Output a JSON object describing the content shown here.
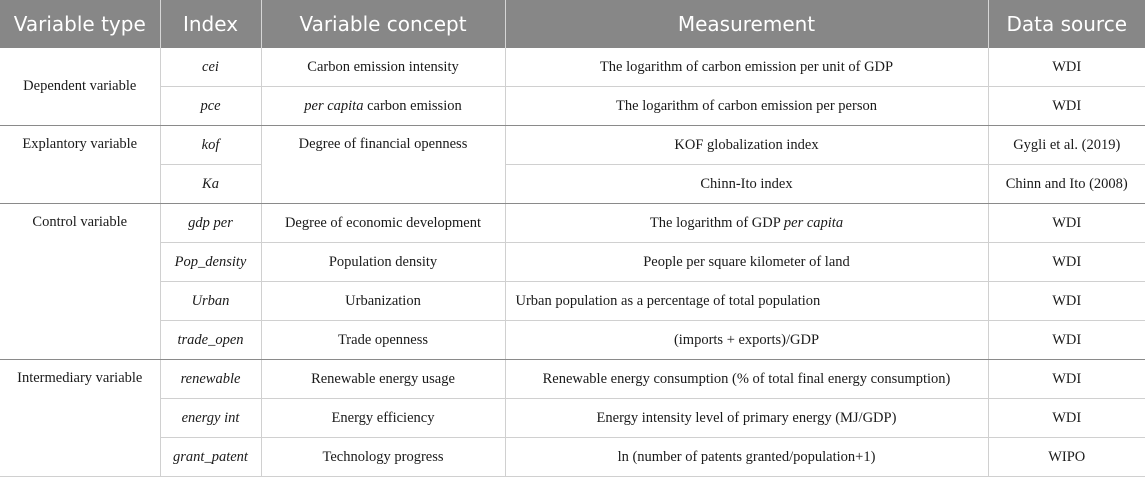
{
  "headers": [
    "Variable type",
    "Index",
    "Variable concept",
    "Measurement",
    "Data source"
  ],
  "groups": {
    "dependent": "Dependent variable",
    "explanatory": "Explantory variable",
    "control": "Control variable",
    "intermediary": "Intermediary variable"
  },
  "rows": [
    {
      "index": "cei",
      "concept": "Carbon emission intensity",
      "measurement": "The logarithm of carbon emission per unit of GDP",
      "source": "WDI"
    },
    {
      "index": "pce",
      "concept_em": "per capita",
      "concept_rest": " carbon emission",
      "measurement": "The logarithm of carbon emission per person",
      "source": "WDI"
    },
    {
      "index": "kof",
      "concept": "Degree of financial openness",
      "measurement": "KOF globalization index",
      "source": "Gygli et al. (2019)"
    },
    {
      "index": "Ka",
      "measurement": "Chinn-Ito index",
      "source": "Chinn and Ito (2008)"
    },
    {
      "index": "gdp per",
      "concept": "Degree of economic development",
      "measurement_pre": "The logarithm of GDP ",
      "measurement_em": "per capita",
      "source": "WDI"
    },
    {
      "index": "Pop_density",
      "concept": "Population density",
      "measurement": "People per square kilometer of land",
      "source": "WDI"
    },
    {
      "index": "Urban",
      "concept": "Urbanization",
      "measurement": "Urban population as a percentage of total population",
      "source": "WDI"
    },
    {
      "index": "trade_open",
      "concept": "Trade openness",
      "measurement": "(imports + exports)/GDP",
      "source": "WDI"
    },
    {
      "index": "renewable",
      "concept": "Renewable energy usage",
      "measurement": "Renewable energy consumption (% of total final energy consumption)",
      "source": "WDI"
    },
    {
      "index": "energy int",
      "concept": "Energy efficiency",
      "measurement": "Energy intensity level of primary energy (MJ/GDP)",
      "source": "WDI"
    },
    {
      "index": "grant_patent",
      "concept": "Technology progress",
      "measurement": "ln (number of patents granted/population+1)",
      "source": "WIPO"
    }
  ]
}
